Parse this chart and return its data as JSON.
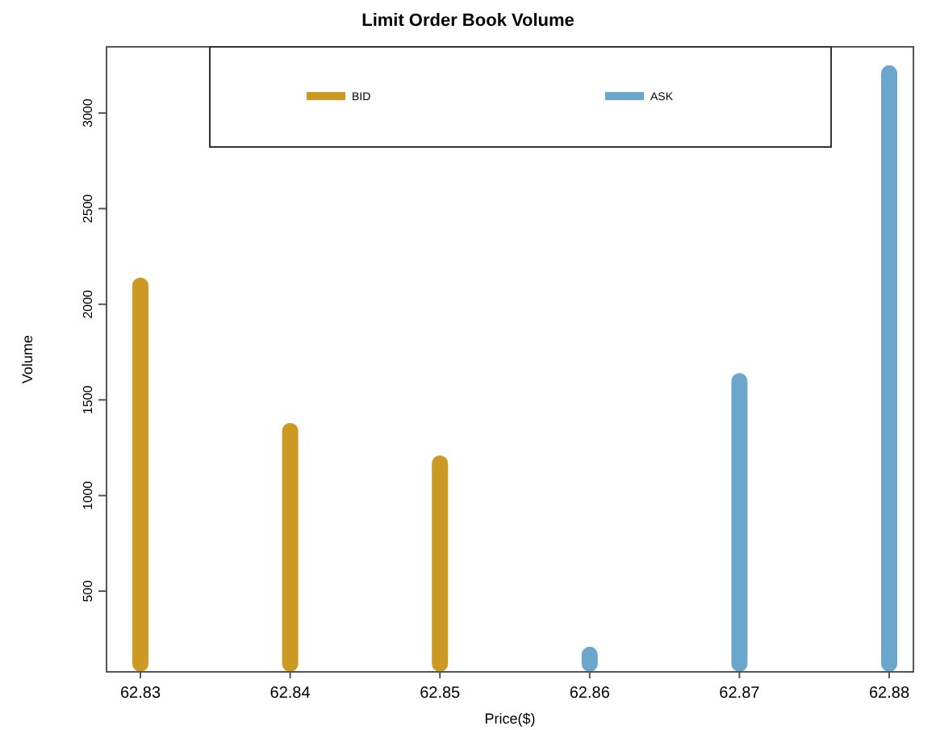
{
  "chart_data": {
    "type": "bar",
    "title": "Limit Order Book Volume",
    "xlabel": "Price($)",
    "ylabel": "Volume",
    "categories": [
      "62.83",
      "62.84",
      "62.85",
      "62.86",
      "62.87",
      "62.88"
    ],
    "series": [
      {
        "name": "BID",
        "color": "#cc9a22",
        "values": [
          2140,
          1380,
          1210,
          null,
          null,
          null
        ]
      },
      {
        "name": "ASK",
        "color": "#6ba6cd",
        "values": [
          null,
          null,
          null,
          210,
          1640,
          3250
        ]
      }
    ],
    "ylim": [
      78,
      3346
    ],
    "yticks": [
      500,
      1000,
      1500,
      2000,
      2500,
      3000
    ],
    "grid": false,
    "legend": "top"
  }
}
